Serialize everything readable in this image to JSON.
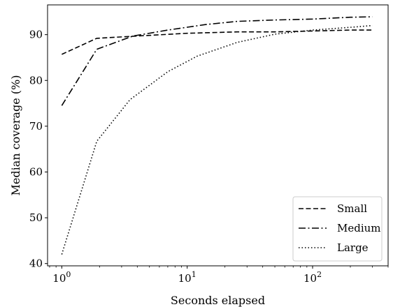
{
  "chart_data": {
    "type": "line",
    "xlabel": "Seconds elapsed",
    "ylabel": "Median coverage (%)",
    "x_scale": "log",
    "xlim": [
      0.77,
      400
    ],
    "ylim": [
      39.5,
      96.5
    ],
    "y_ticks": [
      40,
      50,
      60,
      70,
      80,
      90
    ],
    "x_ticks": [
      {
        "value": 1,
        "base": "10",
        "exp": "0"
      },
      {
        "value": 10,
        "base": "10",
        "exp": "1"
      },
      {
        "value": 100,
        "base": "10",
        "exp": "2"
      }
    ],
    "legend_position": "lower-right",
    "grid": false,
    "series": [
      {
        "name": "Small",
        "style": "dashed",
        "color": "#000000",
        "points": [
          [
            1,
            85.7
          ],
          [
            1.9,
            89.2
          ],
          [
            4,
            89.7
          ],
          [
            10,
            90.3
          ],
          [
            25,
            90.6
          ],
          [
            50,
            90.6
          ],
          [
            100,
            90.8
          ],
          [
            200,
            91.0
          ],
          [
            300,
            91.0
          ]
        ]
      },
      {
        "name": "Medium",
        "style": "dashdot",
        "color": "#000000",
        "points": [
          [
            1,
            74.5
          ],
          [
            1.9,
            86.8
          ],
          [
            3.7,
            89.7
          ],
          [
            7,
            91.0
          ],
          [
            14,
            92.2
          ],
          [
            25,
            92.9
          ],
          [
            50,
            93.2
          ],
          [
            100,
            93.4
          ],
          [
            200,
            93.8
          ],
          [
            300,
            93.9
          ]
        ]
      },
      {
        "name": "Large",
        "style": "dotted",
        "color": "#000000",
        "points": [
          [
            1,
            42.0
          ],
          [
            1.9,
            66.7
          ],
          [
            3.5,
            75.8
          ],
          [
            7,
            81.9
          ],
          [
            12,
            85.3
          ],
          [
            25,
            88.3
          ],
          [
            50,
            90.1
          ],
          [
            100,
            91.0
          ],
          [
            200,
            91.6
          ],
          [
            300,
            92.0
          ]
        ]
      }
    ]
  }
}
